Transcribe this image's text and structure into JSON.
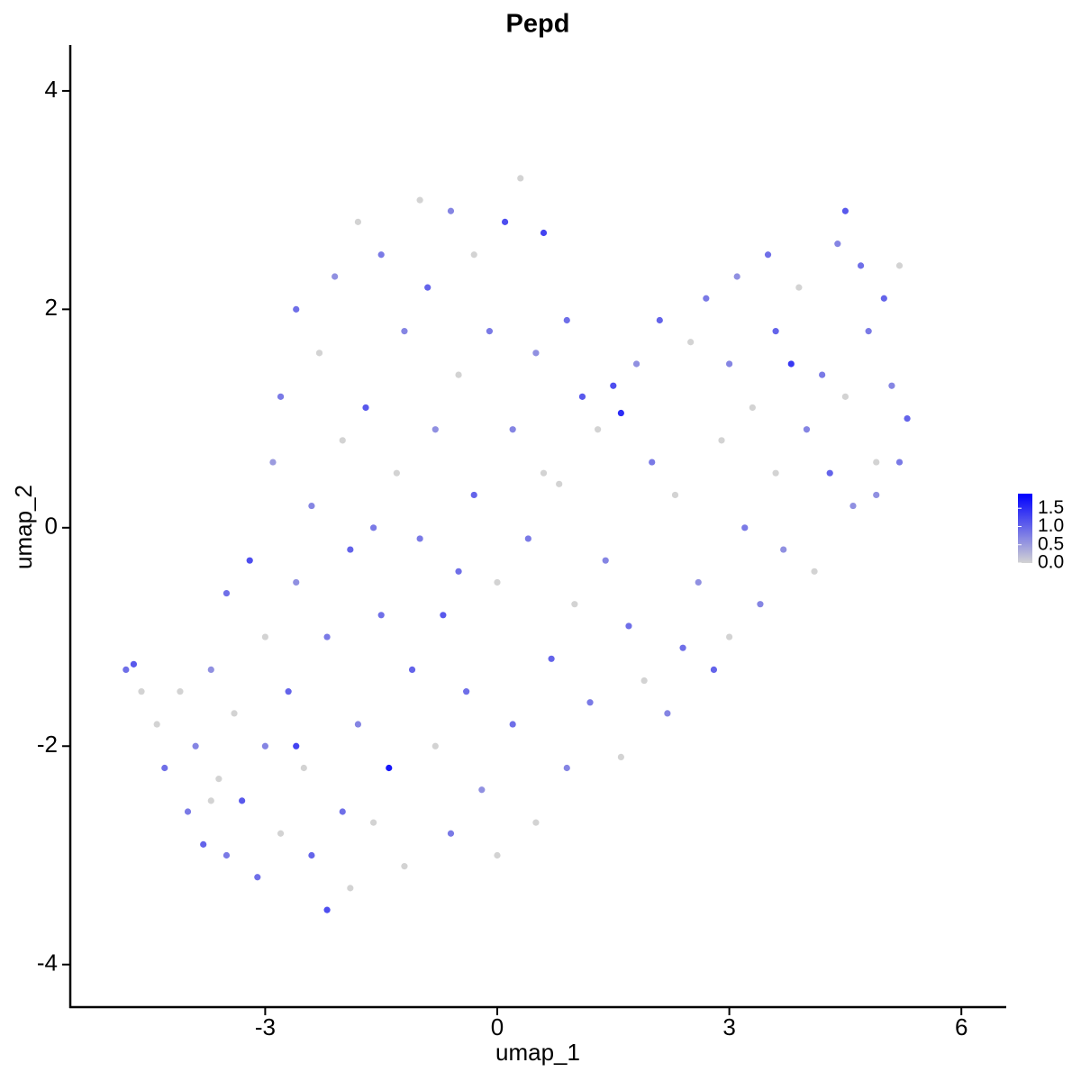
{
  "chart_data": {
    "type": "scatter",
    "title": "Pepd",
    "x_label": "umap_1",
    "y_label": "umap_2",
    "xlim": [
      -5.52,
      6.58
    ],
    "ylim": [
      -4.39,
      4.42
    ],
    "xticks": [
      -3,
      0,
      3,
      6
    ],
    "yticks": [
      -4,
      -2,
      0,
      2,
      4
    ],
    "color_low": "#d3d3d3",
    "color_high": "#0000ff",
    "color_lim": [
      0,
      1.9
    ],
    "color_ticks": [
      {
        "value": 0,
        "label": "0.0"
      },
      0.5,
      {
        "value": 1,
        "label": "1.0"
      },
      1.5
    ],
    "x": [
      -4.8,
      -4.7,
      -4.6,
      -4.4,
      -4.3,
      -4.1,
      -4.0,
      -3.9,
      -3.8,
      -3.7,
      -3.6,
      -3.5,
      -3.5,
      -3.4,
      -3.3,
      -3.2,
      -3.1,
      -3.0,
      -3.0,
      -2.9,
      -2.8,
      -2.8,
      -2.7,
      -2.6,
      -2.6,
      -2.5,
      -2.4,
      -2.4,
      -2.3,
      -2.2,
      -2.2,
      -2.1,
      -2.0,
      -2.0,
      -1.9,
      -1.8,
      -1.8,
      -1.7,
      -1.6,
      -1.5,
      -1.5,
      -1.4,
      -1.3,
      -1.2,
      -1.2,
      -1.1,
      -1.0,
      -1.0,
      -0.9,
      -0.8,
      -0.8,
      -0.7,
      -0.6,
      -0.6,
      -0.5,
      -0.4,
      -0.3,
      -0.3,
      -0.2,
      -0.1,
      0.0,
      0.0,
      0.1,
      0.2,
      0.2,
      0.3,
      0.4,
      0.5,
      0.5,
      0.6,
      0.7,
      0.8,
      0.9,
      0.9,
      1.0,
      1.1,
      1.2,
      1.3,
      1.4,
      1.5,
      1.6,
      1.6,
      1.7,
      1.8,
      1.9,
      2.0,
      2.1,
      2.2,
      2.3,
      2.4,
      2.5,
      2.6,
      2.7,
      2.8,
      2.9,
      3.0,
      3.0,
      3.1,
      3.2,
      3.3,
      3.4,
      3.5,
      3.6,
      3.6,
      3.7,
      3.8,
      3.9,
      4.0,
      4.1,
      4.2,
      4.3,
      4.4,
      4.5,
      4.5,
      4.6,
      4.7,
      4.8,
      4.9,
      5.0,
      5.1,
      5.2,
      5.3,
      5.2,
      4.9,
      -1.9,
      -2.6,
      -3.7,
      -0.5,
      0.6,
      -1.6
    ],
    "y": [
      -1.3,
      -1.25,
      -1.5,
      -1.8,
      -2.2,
      -1.5,
      -2.6,
      -2.0,
      -2.9,
      -1.3,
      -2.3,
      -3.0,
      -0.6,
      -1.7,
      -2.5,
      -0.3,
      -3.2,
      -1.0,
      -2.0,
      0.6,
      -2.8,
      1.2,
      -1.5,
      -0.5,
      2.0,
      -2.2,
      0.2,
      -3.0,
      1.6,
      -3.5,
      -1.0,
      2.3,
      0.8,
      -2.6,
      -0.2,
      2.8,
      -1.8,
      1.1,
      -2.7,
      -0.8,
      2.5,
      -2.2,
      0.5,
      1.8,
      -3.1,
      -1.3,
      3.0,
      -0.1,
      2.2,
      -2.0,
      0.9,
      -0.8,
      2.9,
      -2.8,
      1.4,
      -1.5,
      0.3,
      2.5,
      -2.4,
      1.8,
      -0.5,
      -3.0,
      2.8,
      0.9,
      -1.8,
      3.2,
      -0.1,
      -2.7,
      1.6,
      2.7,
      -1.2,
      0.4,
      -2.2,
      1.9,
      -0.7,
      1.2,
      -1.6,
      0.9,
      -0.3,
      1.3,
      -2.1,
      1.05,
      -0.9,
      1.5,
      -1.4,
      0.6,
      1.9,
      -1.7,
      0.3,
      -1.1,
      1.7,
      -0.5,
      2.1,
      -1.3,
      0.8,
      1.5,
      -1.0,
      2.3,
      0.0,
      1.1,
      -0.7,
      2.5,
      1.8,
      0.5,
      -0.2,
      1.5,
      2.2,
      0.9,
      -0.4,
      1.4,
      0.5,
      2.6,
      2.9,
      1.2,
      0.2,
      2.4,
      1.8,
      0.6,
      2.1,
      1.3,
      2.4,
      1.0,
      0.6,
      0.3,
      -3.3,
      -2.0,
      -2.5,
      -0.4,
      0.5,
      0.0
    ],
    "values": [
      0.9,
      1.1,
      0,
      0,
      0.9,
      0,
      0.8,
      0.7,
      1.0,
      0.6,
      0,
      0.8,
      0.9,
      0,
      1.1,
      1.2,
      0.9,
      0,
      0.7,
      0.5,
      0,
      0.8,
      1.0,
      0.6,
      0.9,
      0,
      0.7,
      1.0,
      0,
      1.2,
      0.8,
      0.6,
      0,
      0.9,
      1.0,
      0,
      0.7,
      1.1,
      0,
      0.9,
      0.8,
      1.7,
      0,
      0.7,
      0,
      1.0,
      0,
      0.8,
      1.0,
      0,
      0.6,
      1.1,
      0.7,
      0.8,
      0,
      0.9,
      1.0,
      0,
      0.6,
      0.8,
      0,
      0,
      1.2,
      0.7,
      0.9,
      0,
      0.8,
      0,
      0.6,
      1.3,
      1.0,
      0,
      0.7,
      0.9,
      0,
      1.1,
      0.8,
      0,
      0.7,
      1.2,
      0,
      1.5,
      0.9,
      0.6,
      0,
      0.8,
      1.0,
      0.7,
      0,
      0.9,
      0,
      0.6,
      0.8,
      1.0,
      0,
      0.7,
      0,
      0.6,
      0.8,
      0,
      0.7,
      0.9,
      1.0,
      0,
      0.6,
      1.4,
      0,
      0.7,
      0,
      0.8,
      1.0,
      0.7,
      1.1,
      0,
      0.6,
      0.9,
      0.8,
      0,
      1.0,
      0.7,
      0,
      1.0,
      0.8,
      0.6,
      0,
      1.3,
      0,
      0.9,
      0,
      0.8
    ]
  }
}
